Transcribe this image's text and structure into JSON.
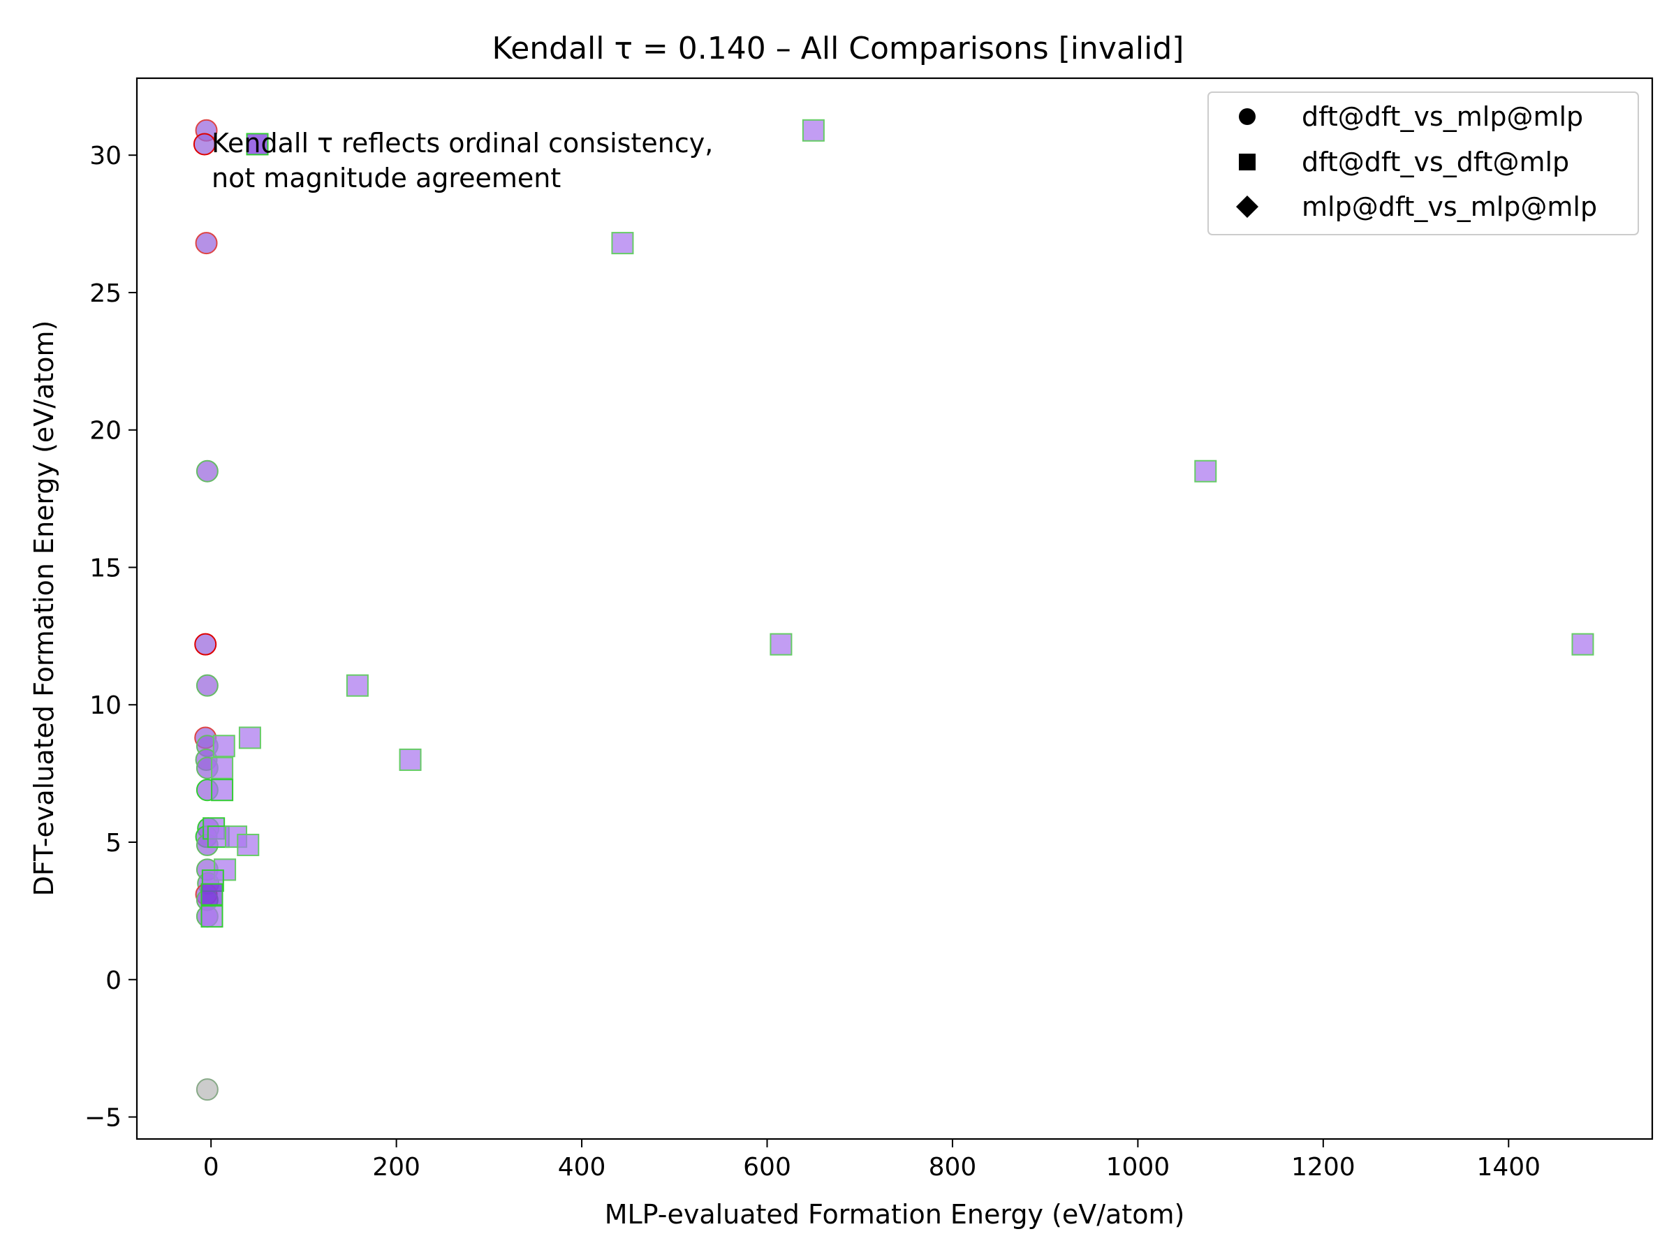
{
  "chart_data": {
    "type": "scatter",
    "title": "Kendall τ = 0.140 – All Comparisons [invalid]",
    "xlabel": "MLP-evaluated Formation Energy (eV/atom)",
    "ylabel": "DFT-evaluated Formation Energy (eV/atom)",
    "xlim": [
      -80,
      1555
    ],
    "ylim": [
      -5.8,
      32.8
    ],
    "xticks": [
      0,
      200,
      400,
      600,
      800,
      1000,
      1200,
      1400
    ],
    "xtick_labels": [
      "0",
      "200",
      "400",
      "600",
      "800",
      "1000",
      "1200",
      "1400"
    ],
    "yticks": [
      -5,
      0,
      5,
      10,
      15,
      20,
      25,
      30
    ],
    "ytick_labels": [
      "−5",
      "0",
      "5",
      "10",
      "15",
      "20",
      "25",
      "30"
    ],
    "grid": false,
    "legend_position": "top-right",
    "annotation": [
      "Kendall τ reflects ordinal consistency,",
      "not magnitude agreement"
    ],
    "series": [
      {
        "name": "dft@dft_vs_mlp@mlp",
        "marker": "circle",
        "fill": "#9966dd",
        "points": [
          {
            "x": -5,
            "y": 30.9,
            "edge": "#dd4444"
          },
          {
            "x": -7,
            "y": 30.4,
            "edge": "#dd0000"
          },
          {
            "x": -5,
            "y": 26.8,
            "edge": "#dd4444"
          },
          {
            "x": -4,
            "y": 18.5,
            "edge": "#66bb66"
          },
          {
            "x": -6,
            "y": 12.2,
            "edge": "#dd0000"
          },
          {
            "x": -4,
            "y": 10.7,
            "edge": "#66bb66"
          },
          {
            "x": -6,
            "y": 8.8,
            "edge": "#dd4444"
          },
          {
            "x": -4,
            "y": 8.5,
            "edge": "#66bb66"
          },
          {
            "x": -5,
            "y": 8.0,
            "edge": "#66bb66"
          },
          {
            "x": -4,
            "y": 7.7,
            "edge": "#66bb66"
          },
          {
            "x": -4,
            "y": 6.9,
            "edge": "#33cc33"
          },
          {
            "x": -3,
            "y": 5.5,
            "edge": "#33cc33"
          },
          {
            "x": -5,
            "y": 5.2,
            "edge": "#33cc33"
          },
          {
            "x": -4,
            "y": 4.9,
            "edge": "#66bb66"
          },
          {
            "x": -4,
            "y": 4.0,
            "edge": "#66bb66"
          },
          {
            "x": -3,
            "y": 3.5,
            "edge": "#66bb66"
          },
          {
            "x": -5,
            "y": 3.1,
            "edge": "#dd4444"
          },
          {
            "x": -4,
            "y": 2.9,
            "edge": "#66bb66"
          },
          {
            "x": -4,
            "y": 2.3,
            "edge": "#66bb66"
          },
          {
            "x": -4,
            "y": -4.0,
            "edge": "#88aa88",
            "fill": "#b8b8b8"
          }
        ]
      },
      {
        "name": "dft@dft_vs_dft@mlp",
        "marker": "square",
        "fill": "#aa77ee",
        "points": [
          {
            "x": 50,
            "y": 30.4,
            "edge": "#33cc33",
            "fill": "#7733dd"
          },
          {
            "x": 650,
            "y": 30.9,
            "edge": "#66cc66"
          },
          {
            "x": 444,
            "y": 26.8,
            "edge": "#66cc66"
          },
          {
            "x": 1073,
            "y": 18.5,
            "edge": "#66cc66"
          },
          {
            "x": 615,
            "y": 12.2,
            "edge": "#66cc66"
          },
          {
            "x": 1480,
            "y": 12.2,
            "edge": "#66cc66"
          },
          {
            "x": 158,
            "y": 10.7,
            "edge": "#66cc66"
          },
          {
            "x": 42,
            "y": 8.8,
            "edge": "#66cc66"
          },
          {
            "x": 215,
            "y": 8.0,
            "edge": "#66cc66"
          },
          {
            "x": 14,
            "y": 8.5,
            "edge": "#66cc66"
          },
          {
            "x": 12,
            "y": 7.7,
            "edge": "#66cc66"
          },
          {
            "x": 12,
            "y": 6.9,
            "edge": "#33cc33"
          },
          {
            "x": 3,
            "y": 5.5,
            "edge": "#33cc33"
          },
          {
            "x": 8,
            "y": 5.2,
            "edge": "#33cc33"
          },
          {
            "x": 27,
            "y": 5.2,
            "edge": "#66cc66"
          },
          {
            "x": 40,
            "y": 4.9,
            "edge": "#66cc66"
          },
          {
            "x": 15,
            "y": 4.0,
            "edge": "#66cc66"
          },
          {
            "x": 2,
            "y": 3.6,
            "edge": "#33cc33"
          },
          {
            "x": 1,
            "y": 3.1,
            "edge": "#33cc33",
            "fill": "#7733dd"
          },
          {
            "x": 1,
            "y": 2.3,
            "edge": "#33cc33"
          }
        ]
      },
      {
        "name": "mlp@dft_vs_mlp@mlp",
        "marker": "diamond",
        "fill": "#000000",
        "points": []
      }
    ],
    "legend_entries": [
      {
        "label": "dft@dft_vs_mlp@mlp",
        "marker": "circle"
      },
      {
        "label": "dft@dft_vs_dft@mlp",
        "marker": "square"
      },
      {
        "label": "mlp@dft_vs_mlp@mlp",
        "marker": "diamond"
      }
    ]
  }
}
